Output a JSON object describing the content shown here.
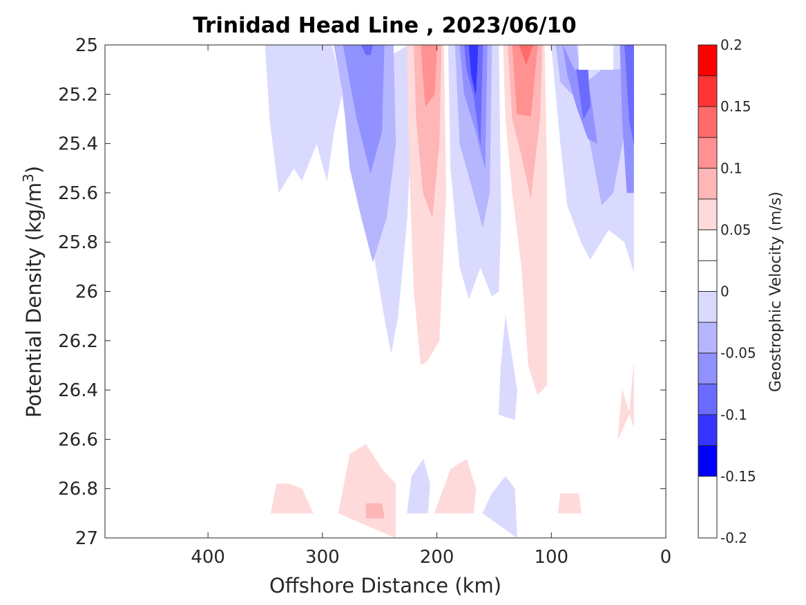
{
  "chart_data": {
    "type": "contour",
    "title": "Trinidad Head Line , 2023/06/10",
    "xlabel": "Offshore Distance (km)",
    "ylabel_main": "Potential Density (kg/m",
    "ylabel_sup": "3",
    "ylabel_close": ")",
    "xlim": [
      490,
      0
    ],
    "ylim": [
      25,
      27
    ],
    "x_reversed": true,
    "y_reversed": true,
    "xticks": [
      400,
      300,
      200,
      100,
      0
    ],
    "yticks": [
      25,
      25.2,
      25.4,
      25.6,
      25.8,
      26,
      26.2,
      26.4,
      26.6,
      26.8,
      27
    ],
    "ytick_labels": [
      "25",
      "25.2",
      "25.4",
      "25.6",
      "25.8",
      "26",
      "26.2",
      "26.4",
      "26.6",
      "26.8",
      "27"
    ],
    "grid": false,
    "colorbar": {
      "label": "Geostrophic Velocity (m/s)",
      "limits": [
        -0.2,
        0.2
      ],
      "step": 0.025,
      "tick_values": [
        0.2,
        0.15,
        0.1,
        0.05,
        0,
        -0.05,
        -0.1,
        -0.15,
        -0.2
      ],
      "tick_labels": [
        "0.2",
        "0.15",
        "0.1",
        "0.05",
        "0",
        "-0.05",
        "-0.1",
        "-0.15",
        "-0.2"
      ],
      "colors_top_to_bottom": [
        "#ff0000",
        "#ff3535",
        "#ff6b6b",
        "#ff9191",
        "#ffb6b6",
        "#ffdada",
        "#ffffff",
        "#ffffff",
        "#dadaff",
        "#b6b6ff",
        "#9191ff",
        "#6b6bff",
        "#3535ff",
        "#0000ff"
      ]
    },
    "regions": [
      {
        "name": "neg-outer-offshore",
        "level": -0.025,
        "color": "#dadaff",
        "points": [
          [
            350,
            25
          ],
          [
            292,
            25
          ],
          [
            275,
            25.3
          ],
          [
            262,
            25.6
          ],
          [
            255,
            25.85
          ],
          [
            246,
            26.1
          ],
          [
            240,
            26.25
          ],
          [
            234,
            26.1
          ],
          [
            226,
            25.7
          ],
          [
            222,
            25.3
          ],
          [
            225,
            25
          ],
          [
            242,
            25.05
          ],
          [
            270,
            25.6
          ],
          [
            283,
            25.2
          ],
          [
            290,
            25.35
          ],
          [
            296,
            25.55
          ],
          [
            305,
            25.4
          ],
          [
            318,
            25.55
          ],
          [
            325,
            25.5
          ],
          [
            338,
            25.6
          ],
          [
            346,
            25.3
          ]
        ]
      },
      {
        "name": "neg-band-2",
        "level": -0.05,
        "color": "#b6b6ff",
        "points": [
          [
            290,
            25
          ],
          [
            238,
            25
          ],
          [
            236,
            25.4
          ],
          [
            244,
            25.7
          ],
          [
            256,
            25.88
          ],
          [
            266,
            25.7
          ],
          [
            276,
            25.5
          ],
          [
            282,
            25.2
          ]
        ]
      },
      {
        "name": "neg-band-3",
        "level": -0.075,
        "color": "#9191ff",
        "points": [
          [
            282,
            25
          ],
          [
            246,
            25
          ],
          [
            248,
            25.35
          ],
          [
            258,
            25.52
          ],
          [
            270,
            25.3
          ],
          [
            278,
            25.1
          ]
        ]
      },
      {
        "name": "neg-core-offshore",
        "level": -0.1,
        "color": "#6b6bff",
        "points": [
          [
            266,
            25
          ],
          [
            256,
            25
          ],
          [
            258,
            25.04
          ],
          [
            262,
            25.04
          ]
        ]
      },
      {
        "name": "pos-outer-1",
        "level": 0.025,
        "color": "#ffdada",
        "points": [
          [
            226,
            25
          ],
          [
            194,
            25
          ],
          [
            192,
            25.6
          ],
          [
            196,
            26.0
          ],
          [
            198,
            26.2
          ],
          [
            208,
            26.28
          ],
          [
            214,
            26.3
          ],
          [
            220,
            26.0
          ],
          [
            224,
            25.5
          ]
        ]
      },
      {
        "name": "pos-band-1",
        "level": 0.05,
        "color": "#ffb6b6",
        "points": [
          [
            220,
            25
          ],
          [
            196,
            25
          ],
          [
            198,
            25.4
          ],
          [
            204,
            25.7
          ],
          [
            212,
            25.6
          ],
          [
            218,
            25.3
          ]
        ]
      },
      {
        "name": "pos-core-1",
        "level": 0.075,
        "color": "#ff9191",
        "points": [
          [
            214,
            25
          ],
          [
            200,
            25
          ],
          [
            202,
            25.2
          ],
          [
            210,
            25.25
          ]
        ]
      },
      {
        "name": "neg-outer-mid",
        "level": -0.025,
        "color": "#dadaff",
        "points": [
          [
            190,
            25
          ],
          [
            146,
            25
          ],
          [
            144,
            25.7
          ],
          [
            146,
            26.0
          ],
          [
            152,
            26.02
          ],
          [
            162,
            25.9
          ],
          [
            172,
            26.03
          ],
          [
            180,
            25.9
          ],
          [
            188,
            25.5
          ]
        ]
      },
      {
        "name": "neg-band-mid-2",
        "level": -0.05,
        "color": "#b6b6ff",
        "points": [
          [
            184,
            25
          ],
          [
            152,
            25
          ],
          [
            154,
            25.6
          ],
          [
            160,
            25.74
          ],
          [
            168,
            25.6
          ],
          [
            180,
            25.4
          ]
        ]
      },
      {
        "name": "neg-band-mid-3",
        "level": -0.075,
        "color": "#9191ff",
        "points": [
          [
            180,
            25
          ],
          [
            156,
            25
          ],
          [
            158,
            25.5
          ],
          [
            166,
            25.35
          ],
          [
            176,
            25.2
          ]
        ]
      },
      {
        "name": "neg-band-mid-4",
        "level": -0.1,
        "color": "#6b6bff",
        "points": [
          [
            176,
            25
          ],
          [
            160,
            25
          ],
          [
            162,
            25.4
          ],
          [
            168,
            25.2
          ],
          [
            174,
            25.1
          ]
        ]
      },
      {
        "name": "neg-core-mid",
        "level": -0.125,
        "color": "#3535ff",
        "points": [
          [
            172,
            25
          ],
          [
            164,
            25
          ],
          [
            166,
            25.2
          ],
          [
            170,
            25.12
          ]
        ]
      },
      {
        "name": "pos-outer-2",
        "level": 0.025,
        "color": "#ffdada",
        "points": [
          [
            142,
            25
          ],
          [
            106,
            25
          ],
          [
            104,
            25.5
          ],
          [
            104,
            26.2
          ],
          [
            104,
            26.38
          ],
          [
            112,
            26.42
          ],
          [
            120,
            26.3
          ],
          [
            126,
            25.9
          ],
          [
            134,
            25.6
          ],
          [
            140,
            25.3
          ]
        ]
      },
      {
        "name": "pos-band-2",
        "level": 0.05,
        "color": "#ffb6b6",
        "points": [
          [
            138,
            25
          ],
          [
            108,
            25
          ],
          [
            110,
            25.3
          ],
          [
            118,
            25.62
          ],
          [
            126,
            25.45
          ],
          [
            134,
            25.3
          ]
        ]
      },
      {
        "name": "pos-band-2b",
        "level": 0.075,
        "color": "#ff9191",
        "points": [
          [
            134,
            25
          ],
          [
            112,
            25
          ],
          [
            118,
            25.29
          ],
          [
            130,
            25.28
          ]
        ]
      },
      {
        "name": "pos-core-2",
        "level": 0.1,
        "color": "#ff6b6b",
        "points": [
          [
            128,
            25
          ],
          [
            116,
            25
          ],
          [
            122,
            25.08
          ]
        ]
      },
      {
        "name": "neg-outer-onshore",
        "level": -0.025,
        "color": "#dadaff",
        "points": [
          [
            100,
            25
          ],
          [
            28,
            25
          ],
          [
            28,
            25.92
          ],
          [
            32,
            25.86
          ],
          [
            36,
            25.8
          ],
          [
            50,
            25.75
          ],
          [
            66,
            25.87
          ],
          [
            74,
            25.8
          ],
          [
            86,
            25.65
          ],
          [
            92,
            25.4
          ],
          [
            98,
            25.1
          ]
        ]
      },
      {
        "name": "neg-band-on-2",
        "level": -0.05,
        "color": "#b6b6ff",
        "points": [
          [
            96,
            25
          ],
          [
            78,
            25
          ],
          [
            70,
            25.3
          ],
          [
            60,
            25.55
          ],
          [
            56,
            25.65
          ],
          [
            46,
            25.6
          ],
          [
            40,
            25.45
          ],
          [
            34,
            25.3
          ],
          [
            28,
            25.3
          ],
          [
            28,
            25.2
          ],
          [
            40,
            25.1
          ],
          [
            56,
            25.1
          ],
          [
            82,
            25.2
          ],
          [
            92,
            25.15
          ]
        ]
      },
      {
        "name": "neg-band-on-3",
        "level": -0.075,
        "color": "#9191ff",
        "points": [
          [
            90,
            25
          ],
          [
            80,
            25.1
          ],
          [
            70,
            25.1
          ],
          [
            66,
            25.2
          ],
          [
            60,
            25.4
          ],
          [
            68,
            25.38
          ],
          [
            78,
            25.25
          ],
          [
            86,
            25.12
          ]
        ]
      },
      {
        "name": "neg-core-on-a",
        "level": -0.1,
        "color": "#6b6bff",
        "points": [
          [
            78,
            25.1
          ],
          [
            68,
            25.1
          ],
          [
            66,
            25.25
          ],
          [
            72,
            25.3
          ]
        ]
      },
      {
        "name": "neg-band-on-b",
        "level": -0.075,
        "color": "#9191ff",
        "points": [
          [
            40,
            25
          ],
          [
            28,
            25
          ],
          [
            28,
            25.6
          ],
          [
            34,
            25.6
          ],
          [
            38,
            25.3
          ]
        ]
      },
      {
        "name": "neg-core-on-b",
        "level": -0.1,
        "color": "#6b6bff",
        "points": [
          [
            36,
            25
          ],
          [
            28,
            25
          ],
          [
            28,
            25.4
          ],
          [
            32,
            25.3
          ]
        ]
      },
      {
        "name": "nodata-onshore-notch",
        "level": 0,
        "color": "#ffffff",
        "points": [
          [
            76,
            25
          ],
          [
            46,
            25
          ],
          [
            46,
            25.1
          ],
          [
            76,
            25.1
          ]
        ]
      },
      {
        "name": "neg-thin-deep",
        "level": -0.025,
        "color": "#dadaff",
        "points": [
          [
            140,
            26.1
          ],
          [
            130,
            26.4
          ],
          [
            132,
            26.52
          ],
          [
            146,
            26.5
          ],
          [
            144,
            26.3
          ]
        ]
      },
      {
        "name": "pos-deep-1",
        "level": 0.025,
        "color": "#ffdada",
        "points": [
          [
            345,
            26.9
          ],
          [
            308,
            26.9
          ],
          [
            318,
            26.8
          ],
          [
            330,
            26.78
          ],
          [
            340,
            26.78
          ]
        ]
      },
      {
        "name": "pos-deep-2",
        "level": 0.025,
        "color": "#ffdada",
        "points": [
          [
            286,
            26.9
          ],
          [
            236,
            27.0
          ],
          [
            236,
            26.78
          ],
          [
            248,
            26.72
          ],
          [
            262,
            26.62
          ],
          [
            276,
            26.66
          ]
        ]
      },
      {
        "name": "pos-deep-2b",
        "level": 0.05,
        "color": "#ffb6b6",
        "points": [
          [
            262,
            26.86
          ],
          [
            248,
            26.86
          ],
          [
            246,
            26.92
          ],
          [
            262,
            26.92
          ]
        ]
      },
      {
        "name": "neg-deep-1",
        "level": -0.025,
        "color": "#dadaff",
        "points": [
          [
            226,
            26.9
          ],
          [
            208,
            26.9
          ],
          [
            206,
            26.78
          ],
          [
            212,
            26.68
          ],
          [
            222,
            26.75
          ]
        ]
      },
      {
        "name": "pos-deep-3",
        "level": 0.025,
        "color": "#ffdada",
        "points": [
          [
            202,
            26.9
          ],
          [
            168,
            26.9
          ],
          [
            166,
            26.8
          ],
          [
            174,
            26.68
          ],
          [
            188,
            26.72
          ]
        ]
      },
      {
        "name": "neg-deep-2",
        "level": -0.025,
        "color": "#dadaff",
        "points": [
          [
            160,
            26.9
          ],
          [
            130,
            27.0
          ],
          [
            132,
            26.8
          ],
          [
            140,
            26.75
          ],
          [
            152,
            26.82
          ]
        ]
      },
      {
        "name": "pos-deep-4",
        "level": 0.025,
        "color": "#ffdada",
        "points": [
          [
            94,
            26.9
          ],
          [
            74,
            26.9
          ],
          [
            76,
            26.82
          ],
          [
            92,
            26.82
          ]
        ]
      },
      {
        "name": "pos-deep-5",
        "level": 0.025,
        "color": "#ffdada",
        "points": [
          [
            42,
            26.6
          ],
          [
            32,
            26.5
          ],
          [
            28,
            26.3
          ],
          [
            28,
            26.55
          ],
          [
            38,
            26.4
          ]
        ]
      }
    ]
  }
}
